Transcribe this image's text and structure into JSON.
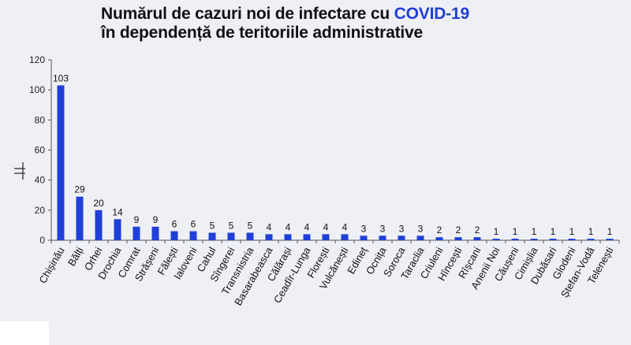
{
  "chart_data": {
    "type": "bar",
    "title_line1_prefix": "Numărul de cazuri noi de infectare cu ",
    "title_line1_highlight": "COVID-19",
    "title_line2": "în dependență de teritoriile administrative",
    "xlabel": "",
    "ylabel": "",
    "ylim": [
      0,
      120
    ],
    "yticks": [
      0,
      20,
      40,
      60,
      80,
      100,
      120
    ],
    "grid": false,
    "bar_color": "#1f3fd8",
    "categories": [
      "Chișinău",
      "Bălți",
      "Orhei",
      "Drochia",
      "Comrat",
      "Strășeni",
      "Fălești",
      "Ialoveni",
      "Cahul",
      "Sîngerei",
      "Transnistria",
      "Basarabeasca",
      "Călărași",
      "Ceadîr-Lunga",
      "Florești",
      "Vulcănești",
      "Edineț",
      "Ocnița",
      "Soroca",
      "Taraclia",
      "Criuleni",
      "Hîncești",
      "Rîșcani",
      "Anenii Noi",
      "Căușeni",
      "Cimișlia",
      "Dubăsari",
      "Glodeni",
      "Ștefan-Vodă",
      "Telenești"
    ],
    "values": [
      103,
      29,
      20,
      14,
      9,
      9,
      6,
      6,
      5,
      5,
      5,
      4,
      4,
      4,
      4,
      4,
      3,
      3,
      3,
      3,
      2,
      2,
      2,
      1,
      1,
      1,
      1,
      1,
      1,
      1
    ]
  }
}
